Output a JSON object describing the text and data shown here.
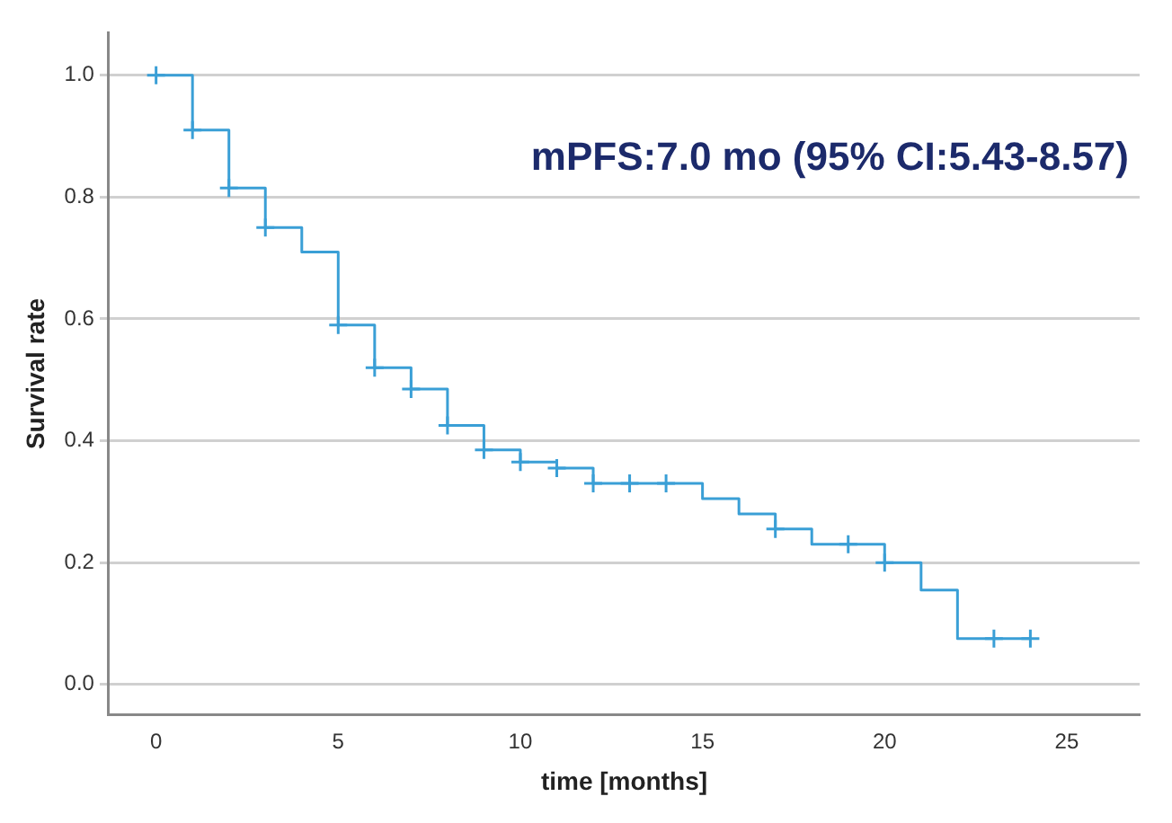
{
  "chart_data": {
    "type": "step",
    "xlabel": "time [months]",
    "ylabel": "Survival rate",
    "annotations": [
      "mPFS:7.0 mo (95% CI:5.43-8.57)"
    ],
    "xlim": [
      -1.3,
      27
    ],
    "xticks": [
      0,
      5,
      10,
      15,
      20,
      25
    ],
    "ylim": [
      -0.05,
      1.07
    ],
    "yticks": [
      {
        "value": 0,
        "label": "0.0"
      },
      {
        "value": 0.2,
        "label": "0.2"
      },
      {
        "value": 0.4,
        "label": "0.4"
      },
      {
        "value": 0.6,
        "label": "0.6"
      },
      {
        "value": 0.8,
        "label": "0.8"
      },
      {
        "value": 1,
        "label": "1.0"
      }
    ],
    "grid": "y",
    "series": [
      {
        "type": "step",
        "color": "#3a9fd6",
        "marker": "none",
        "x": [
          0,
          1,
          2,
          3,
          4,
          5,
          6,
          7,
          8,
          9,
          10,
          11,
          12,
          15,
          16,
          17,
          18,
          20,
          21,
          22,
          24
        ],
        "values": [
          1.0,
          0.91,
          0.815,
          0.75,
          0.71,
          0.59,
          0.52,
          0.485,
          0.425,
          0.385,
          0.365,
          0.355,
          0.33,
          0.305,
          0.28,
          0.255,
          0.23,
          0.2,
          0.155,
          0.075,
          0.075
        ]
      },
      {
        "type": "scatter",
        "color": "#3a9fd6",
        "marker": "cross",
        "x": [
          0,
          1,
          2,
          3,
          5,
          6,
          7,
          8,
          9,
          10,
          11,
          12,
          13,
          14,
          17,
          19,
          20,
          23,
          24
        ],
        "values": [
          1.0,
          0.91,
          0.815,
          0.75,
          0.59,
          0.52,
          0.485,
          0.425,
          0.385,
          0.365,
          0.355,
          0.33,
          0.33,
          0.33,
          0.255,
          0.23,
          0.2,
          0.075,
          0.075
        ]
      }
    ]
  }
}
